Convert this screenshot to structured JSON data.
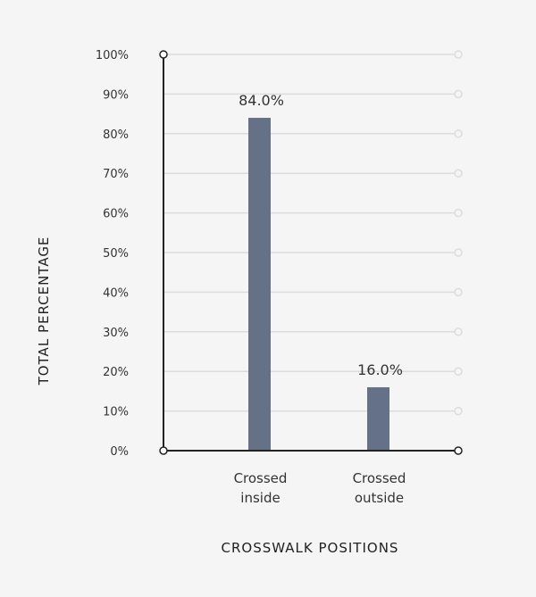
{
  "chart_data": {
    "type": "bar",
    "categories": [
      [
        "Crossed",
        "inside"
      ],
      [
        "Crossed",
        "outside"
      ]
    ],
    "values": [
      84.0,
      16.0
    ],
    "data_labels": [
      "84.0%",
      "16.0%"
    ],
    "title": "",
    "xlabel": "CROSSWALK POSITIONS",
    "ylabel": "TOTAL PERCENTAGE",
    "ylim": [
      0,
      100
    ],
    "yticks": [
      0,
      10,
      20,
      30,
      40,
      50,
      60,
      70,
      80,
      90,
      100
    ],
    "ytick_labels": [
      "0%",
      "10%",
      "20%",
      "30%",
      "40%",
      "50%",
      "60%",
      "70%",
      "80%",
      "90%",
      "100%"
    ],
    "grid": true,
    "bar_color": "#647187",
    "grid_color": "#dcdcdc",
    "axis_color": "#222222"
  }
}
